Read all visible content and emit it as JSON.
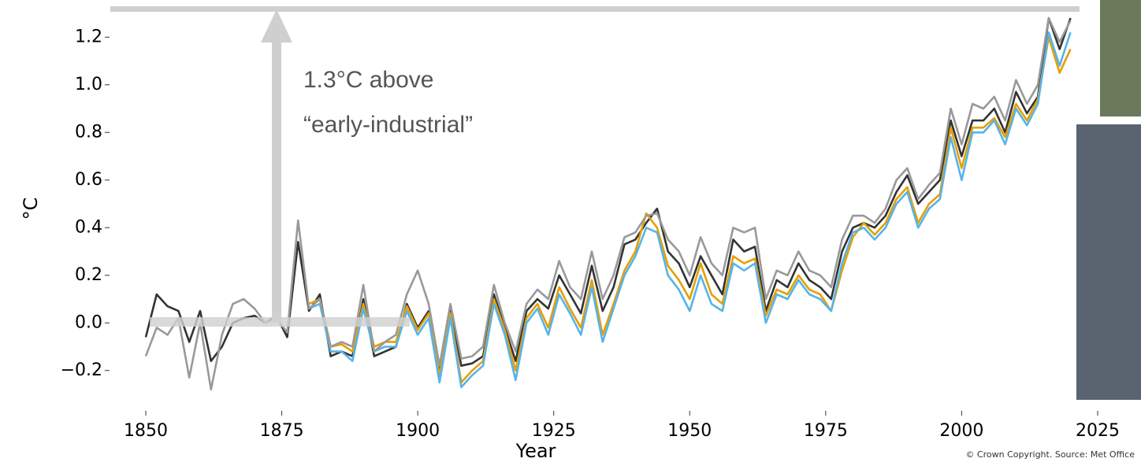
{
  "chart_data": {
    "type": "line",
    "x": [
      1850,
      1852,
      1854,
      1856,
      1858,
      1860,
      1862,
      1864,
      1866,
      1868,
      1870,
      1872,
      1874,
      1876,
      1878,
      1880,
      1882,
      1884,
      1886,
      1888,
      1890,
      1892,
      1894,
      1896,
      1898,
      1900,
      1902,
      1904,
      1906,
      1908,
      1910,
      1912,
      1914,
      1916,
      1918,
      1920,
      1922,
      1924,
      1926,
      1928,
      1930,
      1932,
      1934,
      1936,
      1938,
      1940,
      1942,
      1944,
      1946,
      1948,
      1950,
      1952,
      1954,
      1956,
      1958,
      1960,
      1962,
      1964,
      1966,
      1968,
      1970,
      1972,
      1974,
      1976,
      1978,
      1980,
      1982,
      1984,
      1986,
      1988,
      1990,
      1992,
      1994,
      1996,
      1998,
      2000,
      2002,
      2004,
      2006,
      2008,
      2010,
      2012,
      2014,
      2016,
      2018,
      2020
    ],
    "series": [
      {
        "color": "#999999",
        "values": [
          -0.14,
          -0.02,
          -0.05,
          0.02,
          -0.23,
          0.0,
          -0.28,
          -0.05,
          0.08,
          0.1,
          0.06,
          0.0,
          0.02,
          -0.04,
          0.43,
          0.06,
          0.1,
          -0.1,
          -0.08,
          -0.1,
          0.16,
          -0.12,
          -0.08,
          -0.05,
          0.12,
          0.22,
          0.08,
          -0.18,
          0.08,
          -0.15,
          -0.14,
          -0.1,
          0.16,
          0.0,
          -0.12,
          0.08,
          0.14,
          0.1,
          0.26,
          0.15,
          0.1,
          0.3,
          0.1,
          0.2,
          0.36,
          0.38,
          0.45,
          0.46,
          0.35,
          0.3,
          0.2,
          0.36,
          0.25,
          0.2,
          0.4,
          0.38,
          0.4,
          0.1,
          0.22,
          0.2,
          0.3,
          0.22,
          0.2,
          0.15,
          0.35,
          0.45,
          0.45,
          0.42,
          0.48,
          0.6,
          0.65,
          0.52,
          0.58,
          0.63,
          0.9,
          0.75,
          0.92,
          0.9,
          0.95,
          0.85,
          1.02,
          0.92,
          1.0,
          1.28,
          1.18,
          1.27
        ]
      },
      {
        "color": "#56b4e9",
        "values": [
          null,
          null,
          null,
          null,
          null,
          null,
          null,
          null,
          null,
          null,
          null,
          null,
          null,
          null,
          null,
          0.06,
          0.08,
          -0.12,
          -0.12,
          -0.16,
          0.06,
          -0.12,
          -0.1,
          -0.1,
          0.05,
          -0.05,
          0.02,
          -0.25,
          0.02,
          -0.27,
          -0.22,
          -0.18,
          0.08,
          -0.05,
          -0.24,
          0.0,
          0.06,
          -0.05,
          0.12,
          0.04,
          -0.05,
          0.15,
          -0.08,
          0.06,
          0.2,
          0.28,
          0.4,
          0.38,
          0.2,
          0.14,
          0.05,
          0.2,
          0.08,
          0.05,
          0.25,
          0.22,
          0.25,
          0.0,
          0.12,
          0.1,
          0.18,
          0.12,
          0.1,
          0.05,
          0.25,
          0.38,
          0.4,
          0.35,
          0.4,
          0.5,
          0.55,
          0.4,
          0.48,
          0.52,
          0.78,
          0.6,
          0.8,
          0.8,
          0.85,
          0.75,
          0.9,
          0.83,
          0.92,
          1.22,
          1.08,
          1.22
        ]
      },
      {
        "color": "#e69f00",
        "values": [
          null,
          null,
          null,
          null,
          null,
          null,
          null,
          null,
          null,
          null,
          null,
          null,
          null,
          null,
          null,
          0.08,
          0.1,
          -0.1,
          -0.09,
          -0.12,
          0.08,
          -0.1,
          -0.08,
          -0.08,
          0.07,
          -0.03,
          0.04,
          -0.22,
          0.04,
          -0.25,
          -0.2,
          -0.16,
          0.1,
          -0.03,
          -0.2,
          0.02,
          0.08,
          -0.02,
          0.15,
          0.06,
          -0.02,
          0.18,
          -0.05,
          0.08,
          0.22,
          0.3,
          0.46,
          0.4,
          0.24,
          0.18,
          0.1,
          0.25,
          0.12,
          0.08,
          0.28,
          0.25,
          0.27,
          0.03,
          0.14,
          0.12,
          0.2,
          0.14,
          0.12,
          0.05,
          0.22,
          0.36,
          0.42,
          0.37,
          0.42,
          0.52,
          0.57,
          0.42,
          0.5,
          0.54,
          0.82,
          0.65,
          0.82,
          0.82,
          0.86,
          0.78,
          0.92,
          0.85,
          0.94,
          1.2,
          1.05,
          1.15
        ]
      },
      {
        "color": "#333333",
        "values": [
          -0.06,
          0.12,
          0.07,
          0.05,
          -0.08,
          0.05,
          -0.16,
          -0.1,
          0.0,
          0.02,
          0.03,
          0.0,
          0.03,
          -0.06,
          0.34,
          0.05,
          0.12,
          -0.14,
          -0.12,
          -0.14,
          0.1,
          -0.14,
          -0.12,
          -0.1,
          0.08,
          -0.02,
          0.05,
          -0.2,
          0.06,
          -0.18,
          -0.17,
          -0.14,
          0.12,
          -0.02,
          -0.16,
          0.05,
          0.1,
          0.06,
          0.2,
          0.12,
          0.04,
          0.24,
          0.05,
          0.15,
          0.33,
          0.35,
          0.42,
          0.48,
          0.3,
          0.25,
          0.15,
          0.28,
          0.2,
          0.12,
          0.35,
          0.3,
          0.32,
          0.05,
          0.18,
          0.15,
          0.25,
          0.18,
          0.15,
          0.1,
          0.3,
          0.4,
          0.42,
          0.4,
          0.45,
          0.55,
          0.62,
          0.5,
          0.55,
          0.6,
          0.85,
          0.7,
          0.85,
          0.85,
          0.9,
          0.8,
          0.97,
          0.88,
          0.95,
          1.28,
          1.15,
          1.28
        ]
      }
    ],
    "xlim": [
      1845,
      2030
    ],
    "ylim": [
      -0.3,
      1.3
    ],
    "xticks": [
      1850,
      1875,
      1900,
      1925,
      1950,
      1975,
      2000,
      2025
    ],
    "yticks": [
      {
        "value": -0.2,
        "label": "−0.2"
      },
      {
        "value": 0,
        "label": "0.0"
      },
      0.2,
      0.4,
      0.6,
      0.8,
      {
        "value": 1,
        "label": "1.0"
      },
      1.2
    ],
    "xlabel": "Year",
    "ylabel": "°C",
    "annotation": [
      "1.3°C above",
      "“early-industrial”"
    ],
    "source": "© Crown Copyright. Source: Met Office"
  }
}
